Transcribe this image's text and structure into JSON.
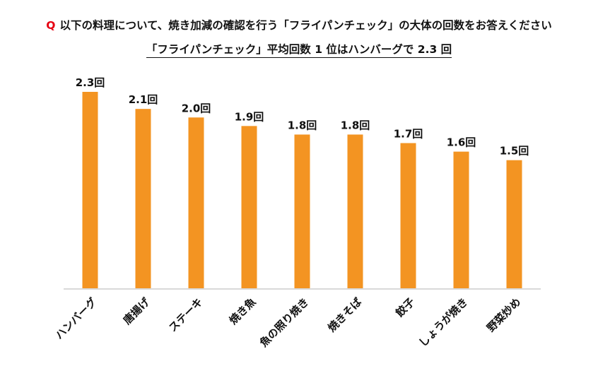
{
  "title": {
    "q_mark": "Q",
    "question": "以下の料理について、焼き加減の確認を行う「フライパンチェック」の大体の回数をお答えください"
  },
  "subtitle": "「フライパンチェック」平均回数 1 位はハンバーグで 2.3 回",
  "chart_data": {
    "type": "bar",
    "title": "「フライパンチェック」平均回数",
    "categories": [
      "ハンバーグ",
      "唐揚げ",
      "ステーキ",
      "焼き魚",
      "魚の照り焼き",
      "焼きそば",
      "餃子",
      "しょうが焼き",
      "野菜炒め"
    ],
    "values": [
      2.3,
      2.1,
      2.0,
      1.9,
      1.8,
      1.8,
      1.7,
      1.6,
      1.5
    ],
    "data_labels": [
      "2.3回",
      "2.1回",
      "2.0回",
      "1.9回",
      "1.8回",
      "1.8回",
      "1.7回",
      "1.6回",
      "1.5回"
    ],
    "unit": "回",
    "ylim": [
      0,
      2.3
    ],
    "grid": false,
    "bar_color": "#f39422",
    "axis_color": "#d9d9d9"
  }
}
